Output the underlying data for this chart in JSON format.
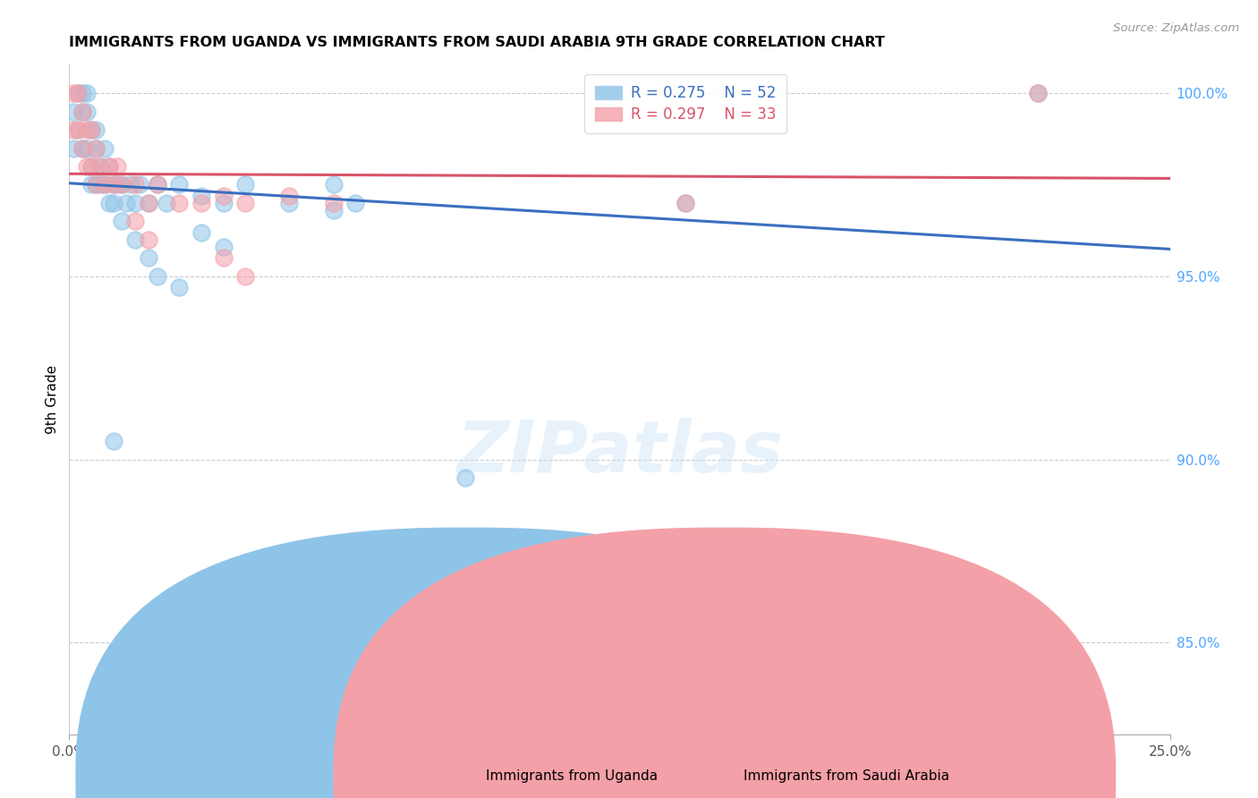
{
  "title": "IMMIGRANTS FROM UGANDA VS IMMIGRANTS FROM SAUDI ARABIA 9TH GRADE CORRELATION CHART",
  "source": "Source: ZipAtlas.com",
  "ylabel": "9th Grade",
  "legend_uganda": "Immigrants from Uganda",
  "legend_saudi": "Immigrants from Saudi Arabia",
  "R_uganda": 0.275,
  "N_uganda": 52,
  "R_saudi": 0.297,
  "N_saudi": 33,
  "color_uganda": "#8ec4e8",
  "color_saudi": "#f4a0a8",
  "color_uganda_line": "#3a6fbf",
  "color_saudi_line": "#d9536a",
  "xlim": [
    0.0,
    0.25
  ],
  "ylim": [
    0.825,
    1.008
  ],
  "yticks": [
    0.85,
    0.9,
    0.95,
    1.0
  ],
  "ytick_labels": [
    "85.0%",
    "90.0%",
    "95.0%",
    "100.0%"
  ],
  "xtick_labels": [
    "0.0%",
    "",
    "",
    "",
    "",
    "",
    "",
    "",
    "",
    "",
    "25.0%"
  ],
  "uganda_x": [
    0.001,
    0.001,
    0.002,
    0.002,
    0.003,
    0.003,
    0.003,
    0.004,
    0.004,
    0.004,
    0.005,
    0.005,
    0.005,
    0.006,
    0.006,
    0.006,
    0.007,
    0.007,
    0.008,
    0.008,
    0.009,
    0.009,
    0.01,
    0.01,
    0.011,
    0.012,
    0.013,
    0.014,
    0.015,
    0.016,
    0.018,
    0.02,
    0.022,
    0.025,
    0.03,
    0.035,
    0.04,
    0.05,
    0.06,
    0.065,
    0.01,
    0.012,
    0.015,
    0.018,
    0.02,
    0.025,
    0.03,
    0.035,
    0.06,
    0.09,
    0.14,
    0.22
  ],
  "uganda_y": [
    0.995,
    0.985,
    1.0,
    0.99,
    1.0,
    0.995,
    0.985,
    1.0,
    0.995,
    0.985,
    0.99,
    0.98,
    0.975,
    0.99,
    0.985,
    0.975,
    0.98,
    0.975,
    0.985,
    0.975,
    0.98,
    0.97,
    0.975,
    0.97,
    0.975,
    0.975,
    0.97,
    0.975,
    0.97,
    0.975,
    0.97,
    0.975,
    0.97,
    0.975,
    0.972,
    0.97,
    0.975,
    0.97,
    0.975,
    0.97,
    0.905,
    0.965,
    0.96,
    0.955,
    0.95,
    0.947,
    0.962,
    0.958,
    0.968,
    0.895,
    0.97,
    1.0
  ],
  "saudi_x": [
    0.001,
    0.001,
    0.002,
    0.002,
    0.003,
    0.003,
    0.004,
    0.004,
    0.005,
    0.005,
    0.006,
    0.006,
    0.007,
    0.008,
    0.009,
    0.01,
    0.011,
    0.012,
    0.015,
    0.018,
    0.02,
    0.025,
    0.03,
    0.035,
    0.04,
    0.05,
    0.06,
    0.035,
    0.04,
    0.015,
    0.018,
    0.14,
    0.22
  ],
  "saudi_y": [
    1.0,
    0.99,
    1.0,
    0.99,
    0.995,
    0.985,
    0.99,
    0.98,
    0.99,
    0.98,
    0.985,
    0.975,
    0.98,
    0.975,
    0.98,
    0.975,
    0.98,
    0.975,
    0.975,
    0.97,
    0.975,
    0.97,
    0.97,
    0.972,
    0.97,
    0.972,
    0.97,
    0.955,
    0.95,
    0.965,
    0.96,
    0.97,
    1.0
  ]
}
